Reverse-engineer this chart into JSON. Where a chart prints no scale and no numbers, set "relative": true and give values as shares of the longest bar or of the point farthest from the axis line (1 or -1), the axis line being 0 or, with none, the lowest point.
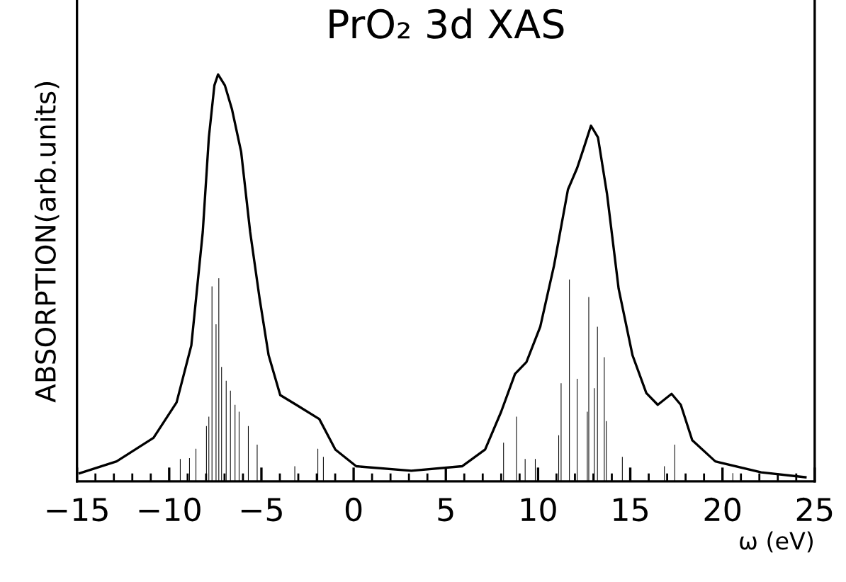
{
  "chart_data": {
    "type": "line",
    "title": "PrO₂ 3d XAS",
    "xlabel": "ω (eV)",
    "ylabel": "ABSORPTION(arb.units)",
    "relative": true,
    "xlim": [
      -15,
      25
    ],
    "xticks": [
      {
        "value": -15,
        "label": "−15"
      },
      {
        "value": -10,
        "label": "−10"
      },
      {
        "value": -5,
        "label": "−5"
      },
      0,
      5,
      10,
      15,
      20,
      25
    ],
    "series": [
      {
        "color": "#000000",
        "x": [
          -14.85,
          -12.85,
          -10.85,
          -9.6,
          -8.8,
          -8.18,
          -7.85,
          -7.55,
          -7.35,
          -6.98,
          -6.6,
          -6.1,
          -5.61,
          -5.1,
          -4.61,
          -3.98,
          -3.11,
          -1.86,
          -0.99,
          0.14,
          3.13,
          5.88,
          7.13,
          8.0,
          8.75,
          9.37,
          10.12,
          10.87,
          11.62,
          12.12,
          12.5,
          12.87,
          13.25,
          13.74,
          14.37,
          15.12,
          15.87,
          16.49,
          17.24,
          17.74,
          18.36,
          19.61,
          22.1,
          24.5
        ],
        "values": [
          0.02,
          0.049,
          0.107,
          0.194,
          0.334,
          0.613,
          0.845,
          0.973,
          1.0,
          0.973,
          0.915,
          0.81,
          0.613,
          0.45,
          0.31,
          0.212,
          0.188,
          0.153,
          0.078,
          0.037,
          0.026,
          0.037,
          0.078,
          0.171,
          0.264,
          0.293,
          0.38,
          0.531,
          0.717,
          0.77,
          0.822,
          0.874,
          0.845,
          0.706,
          0.473,
          0.31,
          0.217,
          0.188,
          0.215,
          0.188,
          0.101,
          0.049,
          0.022,
          0.01
        ]
      },
      {
        "type": "bar",
        "color": "#000000",
        "x": [
          -9.4,
          -8.9,
          -8.55,
          -7.98,
          -7.85,
          -7.68,
          -7.46,
          -7.31,
          -7.16,
          -6.91,
          -6.68,
          -6.43,
          -6.21,
          -5.71,
          -5.23,
          -3.19,
          -1.94,
          -1.64,
          8.13,
          8.83,
          9.3,
          9.85,
          11.12,
          11.25,
          11.7,
          12.12,
          12.67,
          12.75,
          13.05,
          13.22,
          13.59,
          13.7,
          14.57,
          16.85,
          17.41,
          20.56
        ],
        "values": [
          0.055,
          0.057,
          0.08,
          0.136,
          0.159,
          0.479,
          0.386,
          0.499,
          0.281,
          0.247,
          0.223,
          0.188,
          0.171,
          0.136,
          0.09,
          0.037,
          0.08,
          0.06,
          0.095,
          0.159,
          0.055,
          0.055,
          0.113,
          0.241,
          0.496,
          0.252,
          0.171,
          0.453,
          0.229,
          0.38,
          0.305,
          0.148,
          0.06,
          0.037,
          0.09,
          0.02
        ]
      }
    ]
  }
}
